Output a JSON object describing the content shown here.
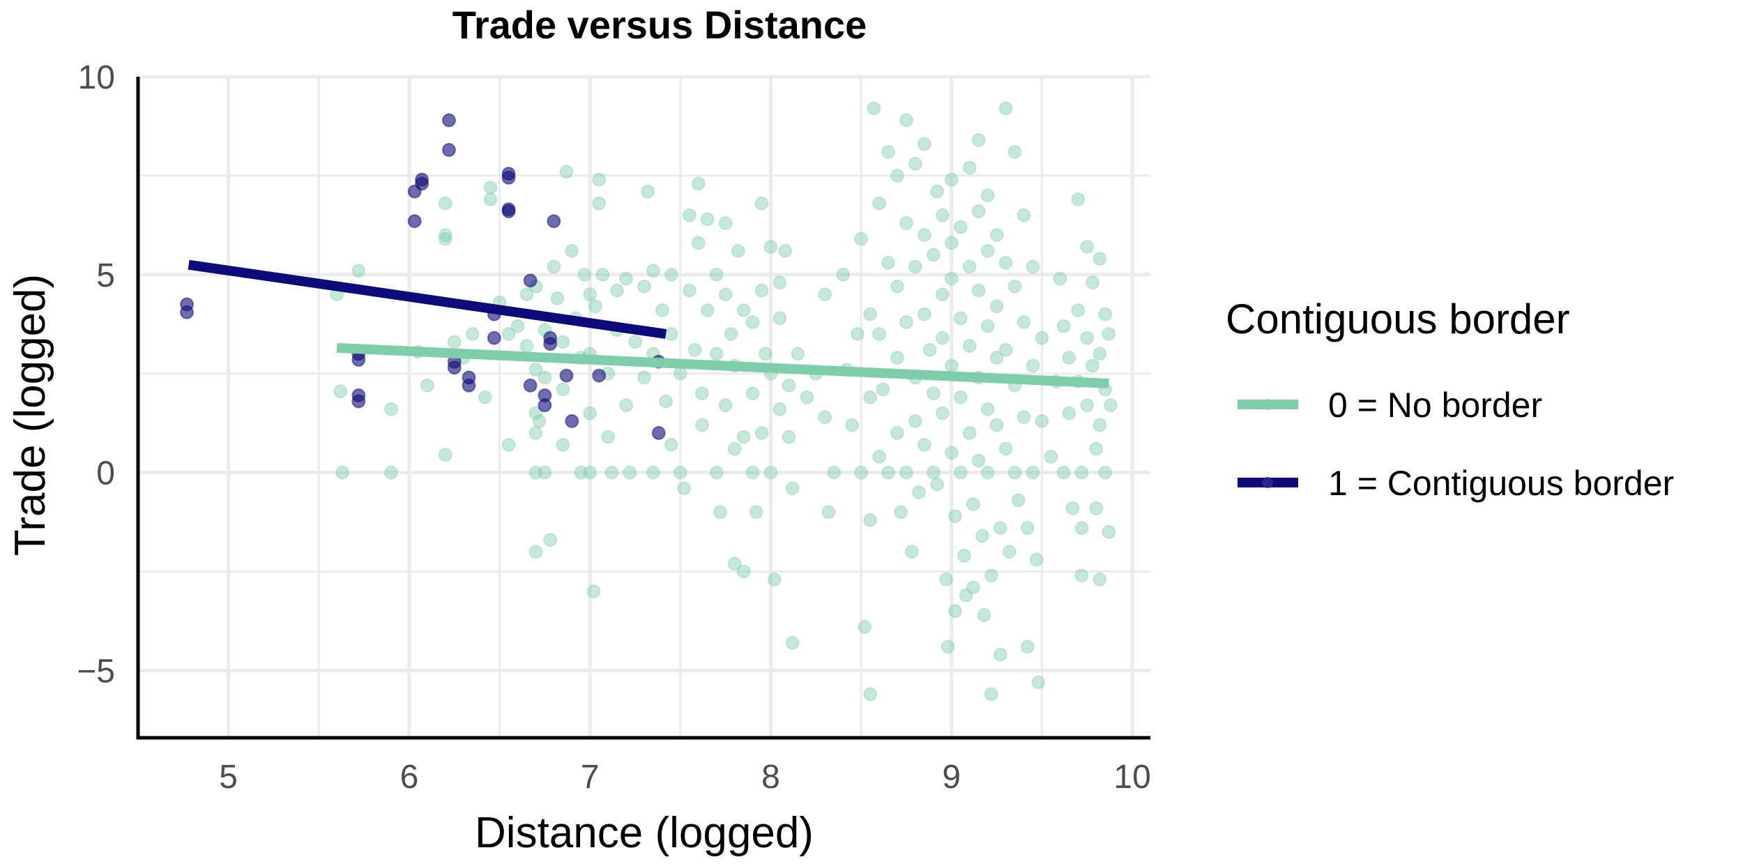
{
  "chart_data": {
    "type": "scatter",
    "title": "Trade versus Distance",
    "xlabel": "Distance (logged)",
    "ylabel": "Trade (logged)",
    "xlim": [
      4.5,
      10.1
    ],
    "ylim": [
      -6.7,
      10.0
    ],
    "x_ticks": [
      5,
      6,
      7,
      8,
      9,
      10
    ],
    "y_ticks": [
      -5,
      0,
      5,
      10
    ],
    "y_tick_labels": [
      "−5",
      "0",
      "5",
      "10"
    ],
    "grid": true,
    "legend": {
      "title": "Contiguous border",
      "position": "right"
    },
    "series": [
      {
        "name": "0 = No border",
        "color": "#7fcdaa",
        "point_opacity": 0.45,
        "trend": [
          [
            5.6,
            3.15
          ],
          [
            9.87,
            2.25
          ]
        ],
        "points": [
          [
            5.6,
            4.5
          ],
          [
            5.62,
            2.05
          ],
          [
            5.63,
            0.0
          ],
          [
            5.72,
            5.1
          ],
          [
            5.9,
            1.6
          ],
          [
            5.9,
            0.0
          ],
          [
            6.05,
            3.05
          ],
          [
            6.1,
            2.2
          ],
          [
            6.2,
            6.8
          ],
          [
            6.2,
            6.0
          ],
          [
            6.2,
            5.9
          ],
          [
            6.2,
            0.45
          ],
          [
            6.25,
            3.3
          ],
          [
            6.3,
            2.9
          ],
          [
            6.35,
            3.5
          ],
          [
            6.42,
            1.9
          ],
          [
            6.45,
            7.2
          ],
          [
            6.45,
            6.9
          ],
          [
            6.5,
            4.3
          ],
          [
            6.55,
            3.5
          ],
          [
            6.55,
            0.7
          ],
          [
            6.6,
            3.7
          ],
          [
            6.65,
            4.5
          ],
          [
            6.65,
            3.2
          ],
          [
            6.7,
            4.7
          ],
          [
            6.7,
            2.6
          ],
          [
            6.7,
            1.5
          ],
          [
            6.7,
            1.0
          ],
          [
            6.7,
            0.0
          ],
          [
            6.7,
            -2.0
          ],
          [
            6.72,
            1.3
          ],
          [
            6.75,
            3.6
          ],
          [
            6.75,
            2.4
          ],
          [
            6.75,
            0.0
          ],
          [
            6.78,
            -1.7
          ],
          [
            6.8,
            5.2
          ],
          [
            6.82,
            4.4
          ],
          [
            6.85,
            3.3
          ],
          [
            6.85,
            2.1
          ],
          [
            6.85,
            0.7
          ],
          [
            6.87,
            7.6
          ],
          [
            6.9,
            5.6
          ],
          [
            6.92,
            3.9
          ],
          [
            6.95,
            2.9
          ],
          [
            6.95,
            0.0
          ],
          [
            6.97,
            5.0
          ],
          [
            7.0,
            4.5
          ],
          [
            7.0,
            3.0
          ],
          [
            7.0,
            1.5
          ],
          [
            7.0,
            0.0
          ],
          [
            7.02,
            -3.0
          ],
          [
            7.03,
            4.2
          ],
          [
            7.05,
            7.4
          ],
          [
            7.05,
            6.8
          ],
          [
            7.07,
            5.0
          ],
          [
            7.1,
            2.5
          ],
          [
            7.1,
            0.9
          ],
          [
            7.12,
            0.0
          ],
          [
            7.15,
            4.6
          ],
          [
            7.15,
            3.6
          ],
          [
            7.2,
            4.9
          ],
          [
            7.2,
            1.7
          ],
          [
            7.22,
            0.0
          ],
          [
            7.25,
            3.3
          ],
          [
            7.3,
            4.7
          ],
          [
            7.3,
            2.4
          ],
          [
            7.32,
            7.1
          ],
          [
            7.35,
            5.1
          ],
          [
            7.35,
            3.0
          ],
          [
            7.35,
            0.0
          ],
          [
            7.4,
            4.1
          ],
          [
            7.42,
            1.8
          ],
          [
            7.45,
            5.0
          ],
          [
            7.45,
            3.5
          ],
          [
            7.45,
            0.7
          ],
          [
            7.5,
            2.5
          ],
          [
            7.5,
            0.0
          ],
          [
            7.52,
            -0.4
          ],
          [
            7.55,
            6.5
          ],
          [
            7.55,
            4.6
          ],
          [
            7.58,
            3.1
          ],
          [
            7.6,
            5.8
          ],
          [
            7.6,
            7.3
          ],
          [
            7.62,
            2.0
          ],
          [
            7.62,
            1.2
          ],
          [
            7.65,
            4.1
          ],
          [
            7.65,
            6.4
          ],
          [
            7.7,
            5.0
          ],
          [
            7.7,
            3.0
          ],
          [
            7.7,
            0.0
          ],
          [
            7.72,
            -1.0
          ],
          [
            7.75,
            4.5
          ],
          [
            7.75,
            1.7
          ],
          [
            7.75,
            6.3
          ],
          [
            7.78,
            3.5
          ],
          [
            7.8,
            2.7
          ],
          [
            7.8,
            0.6
          ],
          [
            7.8,
            -2.3
          ],
          [
            7.82,
            5.6
          ],
          [
            7.85,
            4.1
          ],
          [
            7.85,
            0.9
          ],
          [
            7.85,
            -2.5
          ],
          [
            7.9,
            2.0
          ],
          [
            7.9,
            3.8
          ],
          [
            7.9,
            0.0
          ],
          [
            7.92,
            -1.0
          ],
          [
            7.95,
            6.8
          ],
          [
            7.95,
            4.6
          ],
          [
            7.95,
            1.0
          ],
          [
            7.97,
            3.0
          ],
          [
            8.0,
            5.7
          ],
          [
            8.0,
            2.5
          ],
          [
            8.0,
            0.0
          ],
          [
            8.02,
            -2.7
          ],
          [
            8.05,
            4.8
          ],
          [
            8.05,
            1.6
          ],
          [
            8.05,
            3.9
          ],
          [
            8.08,
            5.6
          ],
          [
            8.1,
            2.2
          ],
          [
            8.1,
            0.9
          ],
          [
            8.12,
            -0.4
          ],
          [
            8.12,
            -4.3
          ],
          [
            8.15,
            3.0
          ],
          [
            8.2,
            1.9
          ],
          [
            8.25,
            2.5
          ],
          [
            8.3,
            1.4
          ],
          [
            8.3,
            4.5
          ],
          [
            8.32,
            -1.0
          ],
          [
            8.35,
            0.0
          ],
          [
            8.4,
            5.0
          ],
          [
            8.42,
            2.6
          ],
          [
            8.45,
            1.2
          ],
          [
            8.48,
            3.5
          ],
          [
            8.5,
            5.9
          ],
          [
            8.5,
            0.0
          ],
          [
            8.52,
            -3.9
          ],
          [
            8.55,
            4.0
          ],
          [
            8.55,
            1.9
          ],
          [
            8.55,
            -1.2
          ],
          [
            8.55,
            -5.6
          ],
          [
            8.57,
            9.2
          ],
          [
            8.6,
            6.8
          ],
          [
            8.6,
            3.5
          ],
          [
            8.6,
            0.4
          ],
          [
            8.62,
            2.1
          ],
          [
            8.65,
            8.1
          ],
          [
            8.65,
            5.3
          ],
          [
            8.65,
            0.0
          ],
          [
            8.7,
            7.5
          ],
          [
            8.7,
            4.7
          ],
          [
            8.7,
            2.9
          ],
          [
            8.7,
            1.0
          ],
          [
            8.72,
            -1.0
          ],
          [
            8.75,
            8.9
          ],
          [
            8.75,
            6.3
          ],
          [
            8.75,
            3.8
          ],
          [
            8.75,
            0.0
          ],
          [
            8.78,
            -2.0
          ],
          [
            8.8,
            7.8
          ],
          [
            8.8,
            5.2
          ],
          [
            8.8,
            2.4
          ],
          [
            8.8,
            1.3
          ],
          [
            8.82,
            -0.5
          ],
          [
            8.85,
            8.3
          ],
          [
            8.85,
            6.0
          ],
          [
            8.85,
            4.0
          ],
          [
            8.85,
            0.7
          ],
          [
            8.88,
            3.1
          ],
          [
            8.9,
            5.5
          ],
          [
            8.9,
            2.0
          ],
          [
            8.9,
            0.0
          ],
          [
            8.92,
            7.1
          ],
          [
            8.92,
            -0.3
          ],
          [
            8.95,
            6.5
          ],
          [
            8.95,
            4.5
          ],
          [
            8.95,
            3.4
          ],
          [
            8.95,
            1.5
          ],
          [
            8.97,
            -2.7
          ],
          [
            8.98,
            -4.4
          ],
          [
            9.0,
            7.4
          ],
          [
            9.0,
            5.8
          ],
          [
            9.0,
            4.9
          ],
          [
            9.0,
            2.7
          ],
          [
            9.0,
            0.5
          ],
          [
            9.02,
            -1.1
          ],
          [
            9.02,
            -3.5
          ],
          [
            9.05,
            6.2
          ],
          [
            9.05,
            3.9
          ],
          [
            9.05,
            1.9
          ],
          [
            9.05,
            0.0
          ],
          [
            9.07,
            -2.1
          ],
          [
            9.08,
            -3.1
          ],
          [
            9.1,
            7.7
          ],
          [
            9.1,
            5.2
          ],
          [
            9.1,
            3.2
          ],
          [
            9.1,
            1.0
          ],
          [
            9.12,
            -0.8
          ],
          [
            9.12,
            -2.9
          ],
          [
            9.15,
            8.4
          ],
          [
            9.15,
            6.6
          ],
          [
            9.15,
            4.6
          ],
          [
            9.15,
            2.4
          ],
          [
            9.15,
            0.3
          ],
          [
            9.17,
            -1.6
          ],
          [
            9.18,
            -3.6
          ],
          [
            9.2,
            7.0
          ],
          [
            9.2,
            5.6
          ],
          [
            9.2,
            3.7
          ],
          [
            9.2,
            1.6
          ],
          [
            9.2,
            0.0
          ],
          [
            9.22,
            -2.6
          ],
          [
            9.22,
            -5.6
          ],
          [
            9.25,
            6.0
          ],
          [
            9.25,
            4.2
          ],
          [
            9.25,
            2.9
          ],
          [
            9.25,
            1.2
          ],
          [
            9.27,
            -1.4
          ],
          [
            9.27,
            -4.6
          ],
          [
            9.3,
            9.2
          ],
          [
            9.3,
            5.3
          ],
          [
            9.3,
            3.1
          ],
          [
            9.3,
            0.6
          ],
          [
            9.32,
            -2.0
          ],
          [
            9.35,
            8.1
          ],
          [
            9.35,
            4.7
          ],
          [
            9.35,
            2.2
          ],
          [
            9.35,
            0.0
          ],
          [
            9.37,
            -0.7
          ],
          [
            9.4,
            6.5
          ],
          [
            9.4,
            3.8
          ],
          [
            9.4,
            1.4
          ],
          [
            9.42,
            -1.4
          ],
          [
            9.42,
            -4.4
          ],
          [
            9.45,
            5.2
          ],
          [
            9.45,
            2.7
          ],
          [
            9.45,
            0.0
          ],
          [
            9.47,
            -2.2
          ],
          [
            9.48,
            -5.3
          ],
          [
            9.5,
            3.4
          ],
          [
            9.5,
            1.3
          ],
          [
            9.55,
            0.4
          ],
          [
            9.58,
            2.3
          ],
          [
            9.6,
            4.9
          ],
          [
            9.62,
            3.7
          ],
          [
            9.62,
            0.0
          ],
          [
            9.65,
            2.9
          ],
          [
            9.65,
            1.5
          ],
          [
            9.67,
            -0.9
          ],
          [
            9.7,
            6.9
          ],
          [
            9.7,
            4.1
          ],
          [
            9.7,
            2.3
          ],
          [
            9.72,
            0.0
          ],
          [
            9.72,
            -1.4
          ],
          [
            9.72,
            -2.6
          ],
          [
            9.75,
            5.7
          ],
          [
            9.75,
            3.4
          ],
          [
            9.75,
            1.7
          ],
          [
            9.78,
            4.8
          ],
          [
            9.78,
            2.7
          ],
          [
            9.8,
            0.6
          ],
          [
            9.8,
            -0.9
          ],
          [
            9.82,
            5.4
          ],
          [
            9.82,
            3.0
          ],
          [
            9.82,
            1.2
          ],
          [
            9.82,
            -2.7
          ],
          [
            9.85,
            4.0
          ],
          [
            9.85,
            2.1
          ],
          [
            9.85,
            0.0
          ],
          [
            9.87,
            -1.5
          ],
          [
            9.87,
            3.5
          ],
          [
            9.88,
            1.7
          ]
        ]
      },
      {
        "name": "1 = Contiguous border",
        "color": "#0d0a7a",
        "point_opacity": 0.6,
        "trend": [
          [
            4.78,
            5.25
          ],
          [
            7.42,
            3.5
          ]
        ],
        "points": [
          [
            4.77,
            4.25
          ],
          [
            4.77,
            4.05
          ],
          [
            5.72,
            3.0
          ],
          [
            5.72,
            2.85
          ],
          [
            5.72,
            1.95
          ],
          [
            5.72,
            1.8
          ],
          [
            6.03,
            7.1
          ],
          [
            6.03,
            6.35
          ],
          [
            6.07,
            7.4
          ],
          [
            6.07,
            7.3
          ],
          [
            6.22,
            8.9
          ],
          [
            6.22,
            8.15
          ],
          [
            6.25,
            2.8
          ],
          [
            6.25,
            2.65
          ],
          [
            6.33,
            2.4
          ],
          [
            6.33,
            2.2
          ],
          [
            6.47,
            4.0
          ],
          [
            6.47,
            3.4
          ],
          [
            6.55,
            7.55
          ],
          [
            6.55,
            7.45
          ],
          [
            6.55,
            6.65
          ],
          [
            6.55,
            6.6
          ],
          [
            6.67,
            4.85
          ],
          [
            6.67,
            2.2
          ],
          [
            6.75,
            1.95
          ],
          [
            6.75,
            1.7
          ],
          [
            6.78,
            3.4
          ],
          [
            6.78,
            3.25
          ],
          [
            6.8,
            6.35
          ],
          [
            6.87,
            2.45
          ],
          [
            6.9,
            1.3
          ],
          [
            7.05,
            2.45
          ],
          [
            7.38,
            2.8
          ],
          [
            7.38,
            1.0
          ]
        ]
      }
    ]
  }
}
